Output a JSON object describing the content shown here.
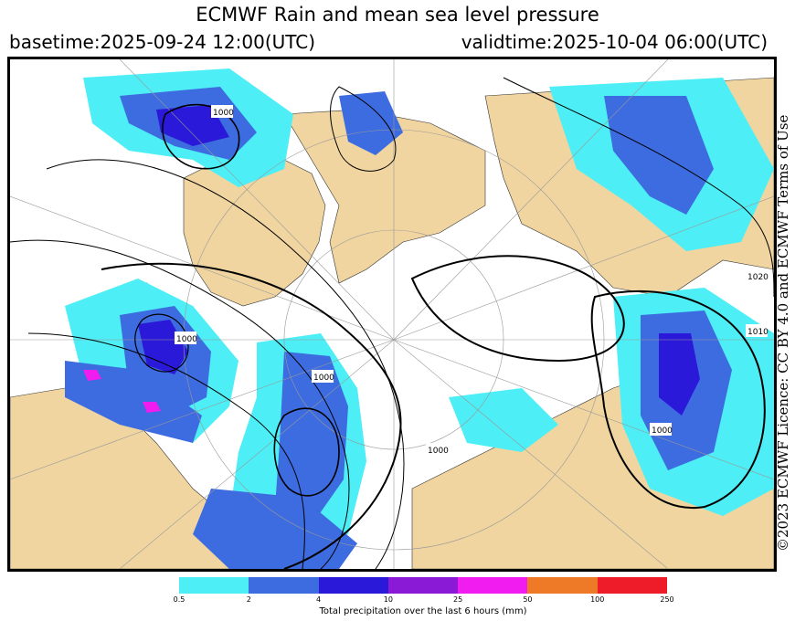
{
  "title": "ECMWF Rain and mean sea level pressure",
  "basetime": "basetime:2025-09-24 12:00(UTC)",
  "validtime": "validtime:2025-10-04 06:00(UTC)",
  "credit": "©2023 ECMWF Licence: CC BY 4.0 and ECMWF Terms of Use",
  "legend": {
    "colors": [
      "#4deef5",
      "#3d6be0",
      "#2a19d8",
      "#8a1ad6",
      "#f01cf0",
      "#ee7a28",
      "#ee1c28"
    ],
    "ticks": [
      "0.5",
      "2",
      "4",
      "10",
      "25",
      "50",
      "100",
      "250"
    ],
    "label": "Total precipitation over the last 6 hours (mm)"
  },
  "map": {
    "land_color": "#f0d5a0",
    "isobar_labels": [
      "1000",
      "1020",
      "1010",
      "1000",
      "1000",
      "1000",
      "1000"
    ]
  }
}
